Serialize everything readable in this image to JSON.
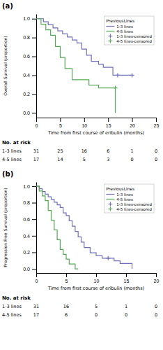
{
  "chart_data": [
    {
      "type": "step",
      "title": "(a)",
      "y_label": "Overall Survival (proportion)",
      "x_label": "Time from first course of eribulin (months)",
      "xlim": [
        0,
        25
      ],
      "ylim": [
        -0.05,
        1.05
      ],
      "xticks": [
        0,
        5,
        10,
        15,
        20,
        25
      ],
      "yticks": [
        {
          "value": 0.0,
          "label": "0.0"
        },
        0.2,
        0.4,
        0.6,
        0.8,
        {
          "value": 1.0,
          "label": "1.0"
        }
      ],
      "grid": false,
      "legend": "upper right",
      "legend_title": "PreviousLines",
      "series": [
        {
          "name": "1-3 lines",
          "type": "step",
          "color": "#7070bb",
          "x": [
            0,
            1.5,
            1.5,
            2.5,
            2.5,
            3.5,
            3.5,
            4.5,
            4.5,
            5.5,
            5.5,
            6.5,
            6.5,
            7.5,
            7.5,
            8.5,
            8.5,
            9.5,
            9.5,
            10.5,
            10.5,
            11.5,
            11.5,
            13.0,
            13.0,
            14.0,
            14.0,
            16.0,
            16.0,
            17.0,
            17.0,
            20.0
          ],
          "values": [
            1.0,
            1.0,
            0.968,
            0.968,
            0.935,
            0.935,
            0.903,
            0.903,
            0.871,
            0.871,
            0.839,
            0.839,
            0.806,
            0.806,
            0.774,
            0.774,
            0.742,
            0.742,
            0.677,
            0.677,
            0.613,
            0.613,
            0.548,
            0.548,
            0.516,
            0.516,
            0.484,
            0.484,
            0.4,
            0.4,
            0.4,
            0.4
          ]
        },
        {
          "name": "4-5 lines",
          "type": "step",
          "color": "#55aa55",
          "x": [
            0,
            1.0,
            1.0,
            2.0,
            2.0,
            3.0,
            3.0,
            4.0,
            4.0,
            5.0,
            5.0,
            6.0,
            6.0,
            7.5,
            7.5,
            9.0,
            9.0,
            11.0,
            11.0,
            13.0,
            13.0,
            15.0,
            15.0,
            16.5,
            16.5
          ],
          "values": [
            1.0,
            1.0,
            0.941,
            0.941,
            0.882,
            0.882,
            0.824,
            0.824,
            0.706,
            0.706,
            0.588,
            0.588,
            0.471,
            0.471,
            0.353,
            0.353,
            0.353,
            0.353,
            0.294,
            0.294,
            0.265,
            0.265,
            0.265,
            0.265,
            0.0
          ]
        },
        {
          "name": "1-3 lines-censored",
          "type": "scatter",
          "marker": "+",
          "color": "#7070bb",
          "x": [
            17.0,
            20.0
          ],
          "values": [
            0.4,
            0.4
          ]
        },
        {
          "name": "4-5 lines-censored",
          "type": "scatter",
          "marker": "+",
          "color": "#55aa55",
          "x": [
            16.5
          ],
          "values": [
            0.265
          ]
        }
      ],
      "at_risk": {
        "title": "No. at risk",
        "x": [
          0,
          5,
          10,
          15,
          20,
          25
        ],
        "rows": [
          {
            "name": "1-3 lines",
            "values": [
              31,
              25,
              16,
              6,
              1,
              0
            ]
          },
          {
            "name": "4-5 lines",
            "values": [
              17,
              14,
              5,
              3,
              0,
              0
            ]
          }
        ]
      }
    },
    {
      "type": "step",
      "title": "(b)",
      "y_label": "Progression Free Survival (proportion)",
      "x_label": "Time from first course of eribulin (months)",
      "xlim": [
        0,
        20
      ],
      "ylim": [
        -0.05,
        1.05
      ],
      "xticks": [
        0,
        5,
        10,
        15,
        20
      ],
      "yticks": [
        {
          "value": 0.0,
          "label": "0.0"
        },
        0.2,
        0.4,
        0.6,
        0.8,
        {
          "value": 1.0,
          "label": "1.0"
        }
      ],
      "grid": false,
      "legend": "upper right",
      "legend_title": "PreviousLines",
      "series": [
        {
          "name": "1-3 lines",
          "type": "step",
          "color": "#7070bb",
          "x": [
            0,
            0.5,
            0.5,
            1.0,
            1.0,
            1.5,
            1.5,
            2.0,
            2.0,
            2.5,
            2.5,
            3.0,
            3.0,
            3.5,
            3.5,
            4.0,
            4.0,
            4.5,
            4.5,
            5.0,
            5.0,
            5.5,
            5.5,
            6.0,
            6.0,
            6.5,
            6.5,
            7.0,
            7.0,
            7.5,
            7.5,
            8.0,
            8.0,
            9.0,
            9.0,
            10.0,
            10.0,
            11.0,
            11.0,
            12.0,
            12.0,
            13.0,
            13.0,
            14.0,
            14.0,
            15.5,
            15.5,
            16.0
          ],
          "values": [
            1.0,
            1.0,
            0.968,
            0.968,
            0.935,
            0.935,
            0.903,
            0.903,
            0.871,
            0.871,
            0.839,
            0.839,
            0.806,
            0.806,
            0.774,
            0.774,
            0.742,
            0.742,
            0.677,
            0.677,
            0.645,
            0.645,
            0.581,
            0.581,
            0.516,
            0.516,
            0.452,
            0.452,
            0.387,
            0.387,
            0.323,
            0.323,
            0.258,
            0.258,
            0.194,
            0.194,
            0.161,
            0.161,
            0.129,
            0.129,
            0.129,
            0.129,
            0.097,
            0.097,
            0.065,
            0.065,
            0.065,
            0.0
          ]
        },
        {
          "name": "4-5 lines",
          "type": "step",
          "color": "#55aa55",
          "x": [
            0,
            0.5,
            0.5,
            1.0,
            1.0,
            1.5,
            1.5,
            2.0,
            2.0,
            2.5,
            2.5,
            3.0,
            3.0,
            3.5,
            3.5,
            4.0,
            4.0,
            4.5,
            4.5,
            5.0,
            5.0,
            5.5,
            5.5,
            6.0,
            6.0,
            6.5,
            6.5,
            7.0
          ],
          "values": [
            1.0,
            1.0,
            0.941,
            0.941,
            0.882,
            0.882,
            0.824,
            0.824,
            0.706,
            0.706,
            0.588,
            0.588,
            0.471,
            0.471,
            0.353,
            0.353,
            0.235,
            0.235,
            0.176,
            0.176,
            0.118,
            0.118,
            0.059,
            0.059,
            0.059,
            0.059,
            0.0,
            0.0
          ]
        },
        {
          "name": "1-3 lines-censored",
          "type": "scatter",
          "marker": "+",
          "color": "#7070bb",
          "x": [
            12.0
          ],
          "values": [
            0.129
          ]
        },
        {
          "name": "4-5 lines-censored",
          "type": "scatter",
          "marker": "+",
          "color": "#55aa55",
          "x": [],
          "values": []
        }
      ],
      "at_risk": {
        "title": "No. at risk",
        "x": [
          0,
          5,
          10,
          15,
          20
        ],
        "rows": [
          {
            "name": "1-3 lines",
            "values": [
              31,
              16,
              5,
              1,
              0
            ]
          },
          {
            "name": "4-5 lines",
            "values": [
              17,
              6,
              0,
              0,
              0
            ]
          }
        ]
      }
    }
  ]
}
